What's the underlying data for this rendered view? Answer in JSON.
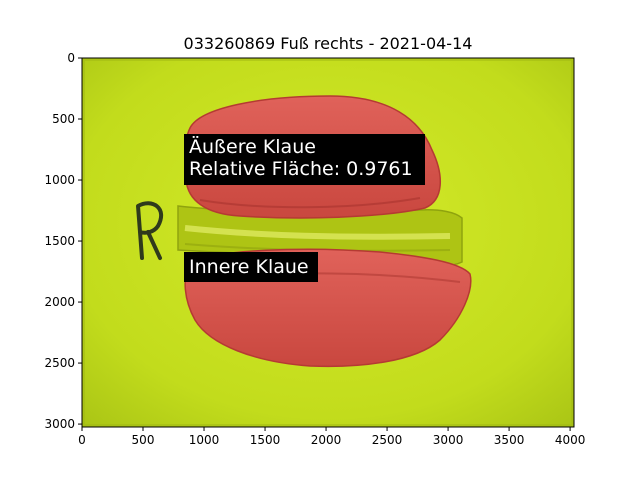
{
  "chart_data": {
    "type": "image",
    "title": "033260869 Fuß rechts - 2021-04-14",
    "xlim": [
      0,
      4032
    ],
    "ylim": [
      3024,
      0
    ],
    "x_ticks": [
      0,
      500,
      1000,
      1500,
      2000,
      2500,
      3000,
      3500,
      4000
    ],
    "y_ticks": [
      0,
      500,
      1000,
      1500,
      2000,
      2500,
      3000
    ],
    "annotations": [
      {
        "lines": [
          "Äußere Klaue",
          "Relative Fläche: 0.9761"
        ],
        "x": 860,
        "y": 730
      },
      {
        "lines": [
          "Innere Klaue"
        ],
        "x": 860,
        "y": 1700
      }
    ],
    "colors": {
      "background_mat": "#c2dc1c",
      "claw_overlay": "#d9574f",
      "label_box": "#000000",
      "label_text": "#ffffff"
    }
  }
}
